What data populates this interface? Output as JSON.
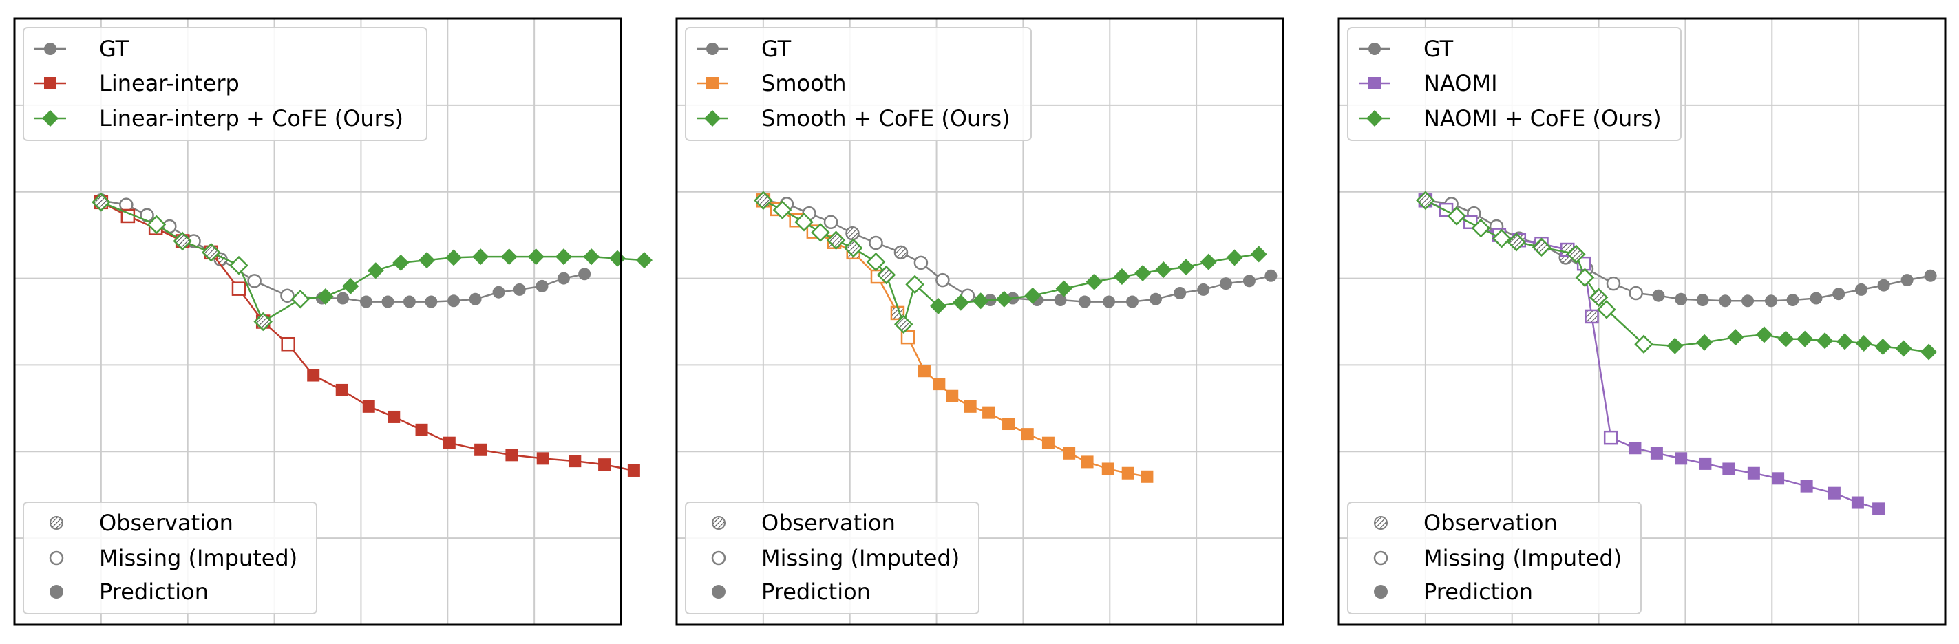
{
  "colors": {
    "gt": "#7f7f7f",
    "linear": "#c0392b",
    "smooth": "#ee8a37",
    "naomi": "#9467bd",
    "cofe": "#4a9e3c",
    "grid": "#cccccc",
    "frame": "#000000"
  },
  "chart_data": [
    {
      "type": "line",
      "xlim": [
        0,
        7
      ],
      "ylim": [
        0,
        7
      ],
      "grid": true,
      "legend_placement": "top-left",
      "marker_legend_placement": "bottom-left",
      "marker_legend": [
        "Observation",
        "Missing (Imputed)",
        "Prediction"
      ],
      "series": [
        {
          "name": "GT",
          "color": "gt",
          "marker": "circle",
          "size": 9,
          "x": [
            1.0,
            1.29,
            1.53,
            1.79,
            2.07,
            2.38,
            2.77,
            3.15,
            3.55,
            3.79,
            4.06,
            4.31,
            4.56,
            4.81,
            5.07,
            5.32,
            5.59,
            5.83,
            6.09,
            6.34,
            6.58
          ],
          "y": [
            4.9,
            4.85,
            4.73,
            4.6,
            4.43,
            4.22,
            3.97,
            3.8,
            3.77,
            3.77,
            3.73,
            3.73,
            3.73,
            3.73,
            3.74,
            3.76,
            3.84,
            3.87,
            3.91,
            4.0,
            4.05
          ],
          "status": [
            "obs",
            "mis",
            "mis",
            "mis",
            "mis",
            "obs",
            "mis",
            "mis",
            "pred",
            "pred",
            "pred",
            "pred",
            "pred",
            "pred",
            "pred",
            "pred",
            "pred",
            "pred",
            "pred",
            "pred",
            "pred"
          ]
        },
        {
          "name": "Linear-interp",
          "color": "linear",
          "marker": "square",
          "size": 9,
          "x": [
            1.0,
            1.31,
            1.63,
            1.94,
            2.27,
            2.59,
            2.87,
            3.16,
            3.45,
            3.78,
            4.09,
            4.38,
            4.7,
            5.02,
            5.38,
            5.74,
            6.1,
            6.47,
            6.81,
            7.15
          ],
          "y": [
            4.88,
            4.72,
            4.58,
            4.43,
            4.3,
            3.88,
            3.5,
            3.24,
            2.88,
            2.71,
            2.52,
            2.4,
            2.25,
            2.1,
            2.02,
            1.96,
            1.92,
            1.89,
            1.85,
            1.78
          ],
          "status": [
            "obs",
            "mis",
            "mis",
            "obs",
            "obs",
            "mis",
            "obs",
            "mis",
            "pred",
            "pred",
            "pred",
            "pred",
            "pred",
            "pred",
            "pred",
            "pred",
            "pred",
            "pred",
            "pred",
            "pred"
          ]
        },
        {
          "name": "Linear-interp + CoFE (Ours)",
          "color": "cofe",
          "marker": "diamond",
          "size": 12,
          "x": [
            1.0,
            1.64,
            1.94,
            2.27,
            2.59,
            2.87,
            3.3,
            3.59,
            3.88,
            4.17,
            4.46,
            4.76,
            5.07,
            5.38,
            5.71,
            6.02,
            6.34,
            6.66,
            6.96,
            7.27
          ],
          "y": [
            4.88,
            4.62,
            4.43,
            4.3,
            4.15,
            3.5,
            3.76,
            3.79,
            3.91,
            4.09,
            4.18,
            4.21,
            4.24,
            4.25,
            4.25,
            4.25,
            4.25,
            4.25,
            4.23,
            4.21
          ],
          "status": [
            "obs",
            "mis",
            "obs",
            "obs",
            "mis",
            "obs",
            "mis",
            "pred",
            "pred",
            "pred",
            "pred",
            "pred",
            "pred",
            "pred",
            "pred",
            "pred",
            "pred",
            "pred",
            "pred",
            "pred"
          ]
        }
      ]
    },
    {
      "type": "line",
      "xlim": [
        0,
        7
      ],
      "ylim": [
        0,
        7
      ],
      "grid": true,
      "legend_placement": "top-left",
      "marker_legend_placement": "bottom-left",
      "marker_legend": [
        "Observation",
        "Missing (Imputed)",
        "Prediction"
      ],
      "series": [
        {
          "name": "GT",
          "color": "gt",
          "marker": "circle",
          "size": 9,
          "x": [
            1.0,
            1.27,
            1.53,
            1.78,
            2.03,
            2.3,
            2.59,
            2.82,
            3.07,
            3.36,
            3.62,
            3.88,
            4.16,
            4.43,
            4.71,
            4.99,
            5.26,
            5.53,
            5.81,
            6.08,
            6.34,
            6.61,
            6.86
          ],
          "y": [
            4.9,
            4.86,
            4.75,
            4.65,
            4.52,
            4.41,
            4.3,
            4.18,
            3.98,
            3.8,
            3.75,
            3.77,
            3.75,
            3.75,
            3.73,
            3.73,
            3.73,
            3.76,
            3.83,
            3.87,
            3.94,
            3.97,
            4.03
          ],
          "status": [
            "obs",
            "mis",
            "mis",
            "mis",
            "obs",
            "mis",
            "obs",
            "mis",
            "mis",
            "mis",
            "pred",
            "pred",
            "pred",
            "pred",
            "pred",
            "pred",
            "pred",
            "pred",
            "pred",
            "pred",
            "pred",
            "pred",
            "pred"
          ]
        },
        {
          "name": "Smooth",
          "color": "smooth",
          "marker": "square",
          "size": 9,
          "x": [
            1.0,
            1.16,
            1.38,
            1.58,
            1.82,
            2.04,
            2.32,
            2.55,
            2.67,
            2.86,
            3.03,
            3.18,
            3.39,
            3.6,
            3.83,
            4.05,
            4.29,
            4.53,
            4.74,
            4.98,
            5.21,
            5.43
          ],
          "y": [
            4.9,
            4.8,
            4.67,
            4.54,
            4.42,
            4.3,
            4.02,
            3.6,
            3.32,
            2.93,
            2.78,
            2.64,
            2.52,
            2.45,
            2.32,
            2.2,
            2.1,
            1.98,
            1.88,
            1.8,
            1.75,
            1.71
          ],
          "status": [
            "obs",
            "mis",
            "mis",
            "mis",
            "obs",
            "obs",
            "mis",
            "obs",
            "mis",
            "pred",
            "pred",
            "pred",
            "pred",
            "pred",
            "pred",
            "pred",
            "pred",
            "pred",
            "pred",
            "pred",
            "pred",
            "pred"
          ]
        },
        {
          "name": "Smooth + CoFE (Ours)",
          "color": "cofe",
          "marker": "diamond",
          "size": 12,
          "x": [
            1.0,
            1.22,
            1.47,
            1.66,
            1.84,
            2.04,
            2.3,
            2.42,
            2.62,
            2.75,
            3.02,
            3.28,
            3.51,
            3.78,
            4.11,
            4.47,
            4.82,
            5.14,
            5.38,
            5.62,
            5.88,
            6.14,
            6.44,
            6.72
          ],
          "y": [
            4.9,
            4.79,
            4.65,
            4.53,
            4.44,
            4.35,
            4.19,
            4.04,
            3.47,
            3.93,
            3.68,
            3.72,
            3.74,
            3.76,
            3.8,
            3.88,
            3.96,
            4.02,
            4.06,
            4.1,
            4.13,
            4.19,
            4.24,
            4.28
          ],
          "status": [
            "obs",
            "mis",
            "mis",
            "mis",
            "obs",
            "obs",
            "mis",
            "obs",
            "obs",
            "mis",
            "pred",
            "pred",
            "pred",
            "pred",
            "pred",
            "pred",
            "pred",
            "pred",
            "pred",
            "pred",
            "pred",
            "pred",
            "pred",
            "pred"
          ]
        }
      ]
    },
    {
      "type": "line",
      "xlim": [
        0,
        7
      ],
      "ylim": [
        0,
        7
      ],
      "grid": true,
      "legend_placement": "top-left",
      "marker_legend_placement": "bottom-left",
      "marker_legend": [
        "Observation",
        "Missing (Imputed)",
        "Prediction"
      ],
      "series": [
        {
          "name": "GT",
          "color": "gt",
          "marker": "circle",
          "size": 9,
          "x": [
            1.0,
            1.3,
            1.56,
            1.82,
            2.08,
            2.32,
            2.62,
            2.86,
            3.17,
            3.43,
            3.69,
            3.95,
            4.2,
            4.46,
            4.72,
            4.99,
            5.24,
            5.51,
            5.77,
            6.03,
            6.29,
            6.56,
            6.83
          ],
          "y": [
            4.9,
            4.86,
            4.75,
            4.6,
            4.46,
            4.4,
            4.24,
            4.11,
            3.94,
            3.83,
            3.8,
            3.76,
            3.75,
            3.74,
            3.74,
            3.74,
            3.75,
            3.77,
            3.82,
            3.87,
            3.92,
            3.98,
            4.03
          ],
          "status": [
            "obs",
            "mis",
            "mis",
            "mis",
            "mis",
            "obs",
            "obs",
            "mis",
            "mis",
            "mis",
            "pred",
            "pred",
            "pred",
            "pred",
            "pred",
            "pred",
            "pred",
            "pred",
            "pred",
            "pred",
            "pred",
            "pred",
            "pred"
          ]
        },
        {
          "name": "NAOMI",
          "color": "naomi",
          "marker": "square",
          "size": 9,
          "x": [
            1.0,
            1.24,
            1.52,
            1.85,
            2.08,
            2.34,
            2.64,
            2.83,
            2.92,
            3.14,
            3.42,
            3.67,
            3.95,
            4.23,
            4.5,
            4.79,
            5.07,
            5.4,
            5.72,
            5.99,
            6.23
          ],
          "y": [
            4.9,
            4.79,
            4.65,
            4.5,
            4.44,
            4.4,
            4.33,
            4.17,
            3.56,
            2.16,
            2.04,
            1.98,
            1.92,
            1.86,
            1.8,
            1.75,
            1.69,
            1.6,
            1.52,
            1.41,
            1.34
          ],
          "status": [
            "obs",
            "mis",
            "mis",
            "mis",
            "obs",
            "mis",
            "obs",
            "mis",
            "obs",
            "mis",
            "pred",
            "pred",
            "pred",
            "pred",
            "pred",
            "pred",
            "pred",
            "pred",
            "pred",
            "pred",
            "pred"
          ]
        },
        {
          "name": "NAOMI + CoFE (Ours)",
          "color": "cofe",
          "marker": "diamond",
          "size": 12,
          "x": [
            1.0,
            1.36,
            1.64,
            1.88,
            2.05,
            2.34,
            2.74,
            2.84,
            3.0,
            3.09,
            3.52,
            3.88,
            4.22,
            4.58,
            4.91,
            5.16,
            5.38,
            5.61,
            5.84,
            6.06,
            6.28,
            6.52,
            6.81
          ],
          "y": [
            4.9,
            4.72,
            4.58,
            4.46,
            4.42,
            4.36,
            4.28,
            4.01,
            3.78,
            3.64,
            3.24,
            3.22,
            3.26,
            3.32,
            3.35,
            3.3,
            3.3,
            3.28,
            3.27,
            3.25,
            3.21,
            3.19,
            3.15
          ],
          "status": [
            "obs",
            "mis",
            "mis",
            "mis",
            "obs",
            "obs",
            "obs",
            "mis",
            "obs",
            "mis",
            "mis",
            "pred",
            "pred",
            "pred",
            "pred",
            "pred",
            "pred",
            "pred",
            "pred",
            "pred",
            "pred",
            "pred",
            "pred"
          ]
        }
      ]
    }
  ]
}
